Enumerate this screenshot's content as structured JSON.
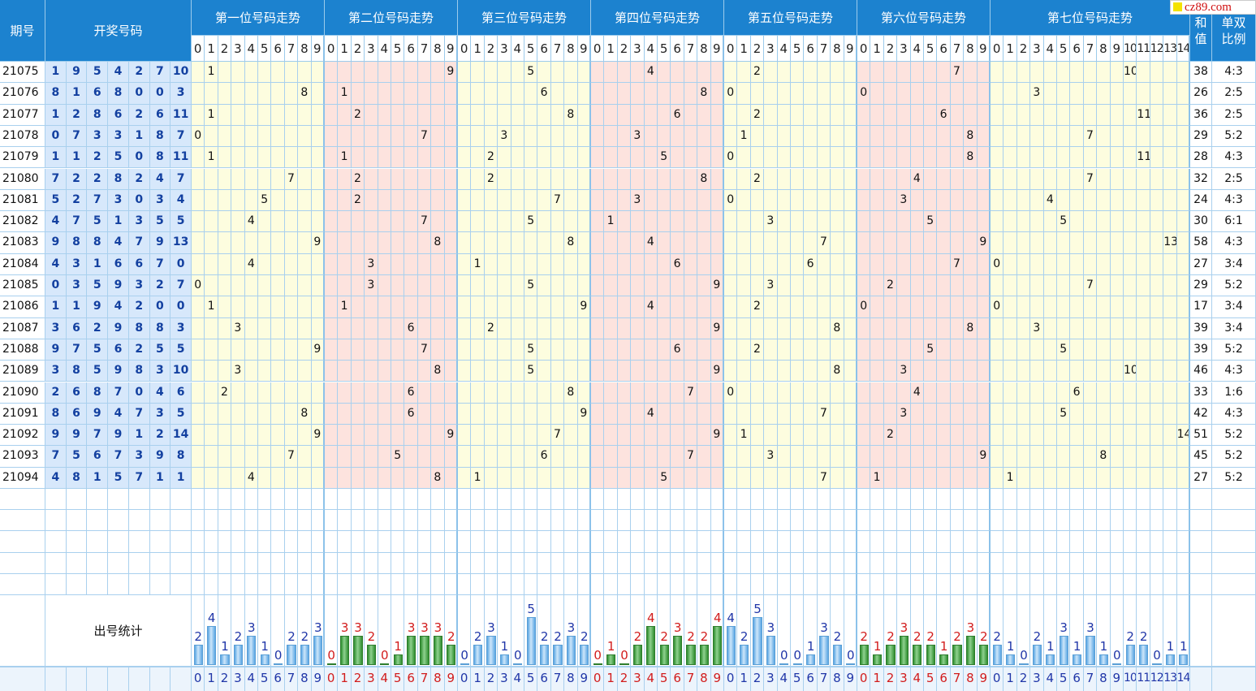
{
  "headers": {
    "period": "期号",
    "winning": "开奖号码",
    "positions": [
      "第一位号码走势",
      "第二位号码走势",
      "第三位号码走势",
      "第四位号码走势",
      "第五位号码走势",
      "第六位号码走势",
      "第七位号码走势"
    ],
    "sum_line1": "和",
    "sum_line2": "值",
    "ratio_line1": "单双",
    "ratio_line2": "比例",
    "digits_0_9": [
      "0",
      "1",
      "2",
      "3",
      "4",
      "5",
      "6",
      "7",
      "8",
      "9"
    ],
    "digits_0_14": [
      "0",
      "1",
      "2",
      "3",
      "4",
      "5",
      "6",
      "7",
      "8",
      "9",
      "10",
      "11",
      "12",
      "13",
      "14"
    ]
  },
  "stats_label": "出号统计",
  "logo_text": "cz89.com",
  "colors": {
    "header_bg": "#1c82cf",
    "yellow_band": "#fdfddf",
    "pink_band": "#fde3de",
    "winning_bg": "#d7e8fb",
    "bar_blue": "#8fc4ee",
    "bar_green": "#4aa94a",
    "label_blue": "#2036a8",
    "label_red": "#d21c1c"
  },
  "rows": [
    {
      "period": "21075",
      "nums": [
        "1",
        "9",
        "5",
        "4",
        "2",
        "7",
        "10"
      ],
      "sum": "38",
      "ratio": "4:3"
    },
    {
      "period": "21076",
      "nums": [
        "8",
        "1",
        "6",
        "8",
        "0",
        "0",
        "3"
      ],
      "sum": "26",
      "ratio": "2:5"
    },
    {
      "period": "21077",
      "nums": [
        "1",
        "2",
        "8",
        "6",
        "2",
        "6",
        "11"
      ],
      "sum": "36",
      "ratio": "2:5"
    },
    {
      "period": "21078",
      "nums": [
        "0",
        "7",
        "3",
        "3",
        "1",
        "8",
        "7"
      ],
      "sum": "29",
      "ratio": "5:2"
    },
    {
      "period": "21079",
      "nums": [
        "1",
        "1",
        "2",
        "5",
        "0",
        "8",
        "11"
      ],
      "sum": "28",
      "ratio": "4:3"
    },
    {
      "period": "21080",
      "nums": [
        "7",
        "2",
        "2",
        "8",
        "2",
        "4",
        "7"
      ],
      "sum": "32",
      "ratio": "2:5"
    },
    {
      "period": "21081",
      "nums": [
        "5",
        "2",
        "7",
        "3",
        "0",
        "3",
        "4"
      ],
      "sum": "24",
      "ratio": "4:3"
    },
    {
      "period": "21082",
      "nums": [
        "4",
        "7",
        "5",
        "1",
        "3",
        "5",
        "5"
      ],
      "sum": "30",
      "ratio": "6:1"
    },
    {
      "period": "21083",
      "nums": [
        "9",
        "8",
        "8",
        "4",
        "7",
        "9",
        "13"
      ],
      "sum": "58",
      "ratio": "4:3"
    },
    {
      "period": "21084",
      "nums": [
        "4",
        "3",
        "1",
        "6",
        "6",
        "7",
        "0"
      ],
      "sum": "27",
      "ratio": "3:4"
    },
    {
      "period": "21085",
      "nums": [
        "0",
        "3",
        "5",
        "9",
        "3",
        "2",
        "7"
      ],
      "sum": "29",
      "ratio": "5:2"
    },
    {
      "period": "21086",
      "nums": [
        "1",
        "1",
        "9",
        "4",
        "2",
        "0",
        "0"
      ],
      "sum": "17",
      "ratio": "3:4"
    },
    {
      "period": "21087",
      "nums": [
        "3",
        "6",
        "2",
        "9",
        "8",
        "8",
        "3"
      ],
      "sum": "39",
      "ratio": "3:4"
    },
    {
      "period": "21088",
      "nums": [
        "9",
        "7",
        "5",
        "6",
        "2",
        "5",
        "5"
      ],
      "sum": "39",
      "ratio": "5:2"
    },
    {
      "period": "21089",
      "nums": [
        "3",
        "8",
        "5",
        "9",
        "8",
        "3",
        "10"
      ],
      "sum": "46",
      "ratio": "4:3"
    },
    {
      "period": "21090",
      "nums": [
        "2",
        "6",
        "8",
        "7",
        "0",
        "4",
        "6"
      ],
      "sum": "33",
      "ratio": "1:6"
    },
    {
      "period": "21091",
      "nums": [
        "8",
        "6",
        "9",
        "4",
        "7",
        "3",
        "5"
      ],
      "sum": "42",
      "ratio": "4:3"
    },
    {
      "period": "21092",
      "nums": [
        "9",
        "9",
        "7",
        "9",
        "1",
        "2",
        "14"
      ],
      "sum": "51",
      "ratio": "5:2"
    },
    {
      "period": "21093",
      "nums": [
        "7",
        "5",
        "6",
        "7",
        "3",
        "9",
        "8"
      ],
      "sum": "45",
      "ratio": "5:2"
    },
    {
      "period": "21094",
      "nums": [
        "4",
        "8",
        "1",
        "5",
        "7",
        "1",
        "1"
      ],
      "sum": "27",
      "ratio": "5:2"
    }
  ],
  "stats": [
    {
      "counts": [
        2,
        4,
        1,
        2,
        3,
        1,
        0,
        2,
        2,
        3
      ],
      "labels": [
        "2",
        "4",
        "1",
        "2",
        "3",
        "1",
        "0",
        "2",
        "2",
        "3"
      ]
    },
    {
      "counts": [
        0,
        3,
        3,
        2,
        0,
        1,
        3,
        3,
        3,
        2
      ],
      "labels": [
        "0",
        "3",
        "3",
        "2",
        "0",
        "1",
        "3",
        "3",
        "3",
        "2"
      ]
    },
    {
      "counts": [
        0,
        2,
        3,
        1,
        0,
        5,
        2,
        2,
        3,
        2
      ],
      "labels": [
        "0",
        "2",
        "3",
        "1",
        "0",
        "5",
        "2",
        "2",
        "3",
        "2"
      ]
    },
    {
      "counts": [
        0,
        1,
        0,
        2,
        4,
        2,
        3,
        2,
        2,
        4
      ],
      "labels": [
        "0",
        "1",
        "0",
        "2",
        "4",
        "2",
        "3",
        "2",
        "2",
        "4"
      ]
    },
    {
      "counts": [
        4,
        2,
        5,
        3,
        0,
        0,
        1,
        3,
        2,
        0
      ],
      "labels": [
        "4",
        "2",
        "5",
        "3",
        "0",
        "0",
        "1",
        "3",
        "2",
        "0"
      ]
    },
    {
      "counts": [
        2,
        1,
        2,
        3,
        2,
        2,
        1,
        2,
        3,
        2
      ],
      "labels": [
        "2",
        "1",
        "2",
        "3",
        "2",
        "2",
        "1",
        "2",
        "3",
        "2"
      ]
    },
    {
      "counts": [
        2,
        1,
        0,
        2,
        1,
        3,
        1,
        3,
        1,
        0,
        2,
        2,
        0,
        1,
        1
      ],
      "labels": [
        "2",
        "1",
        "0",
        "2",
        "1",
        "3",
        "1",
        "3",
        "1",
        "0",
        "2",
        "2",
        "0",
        "1",
        "1"
      ]
    }
  ]
}
